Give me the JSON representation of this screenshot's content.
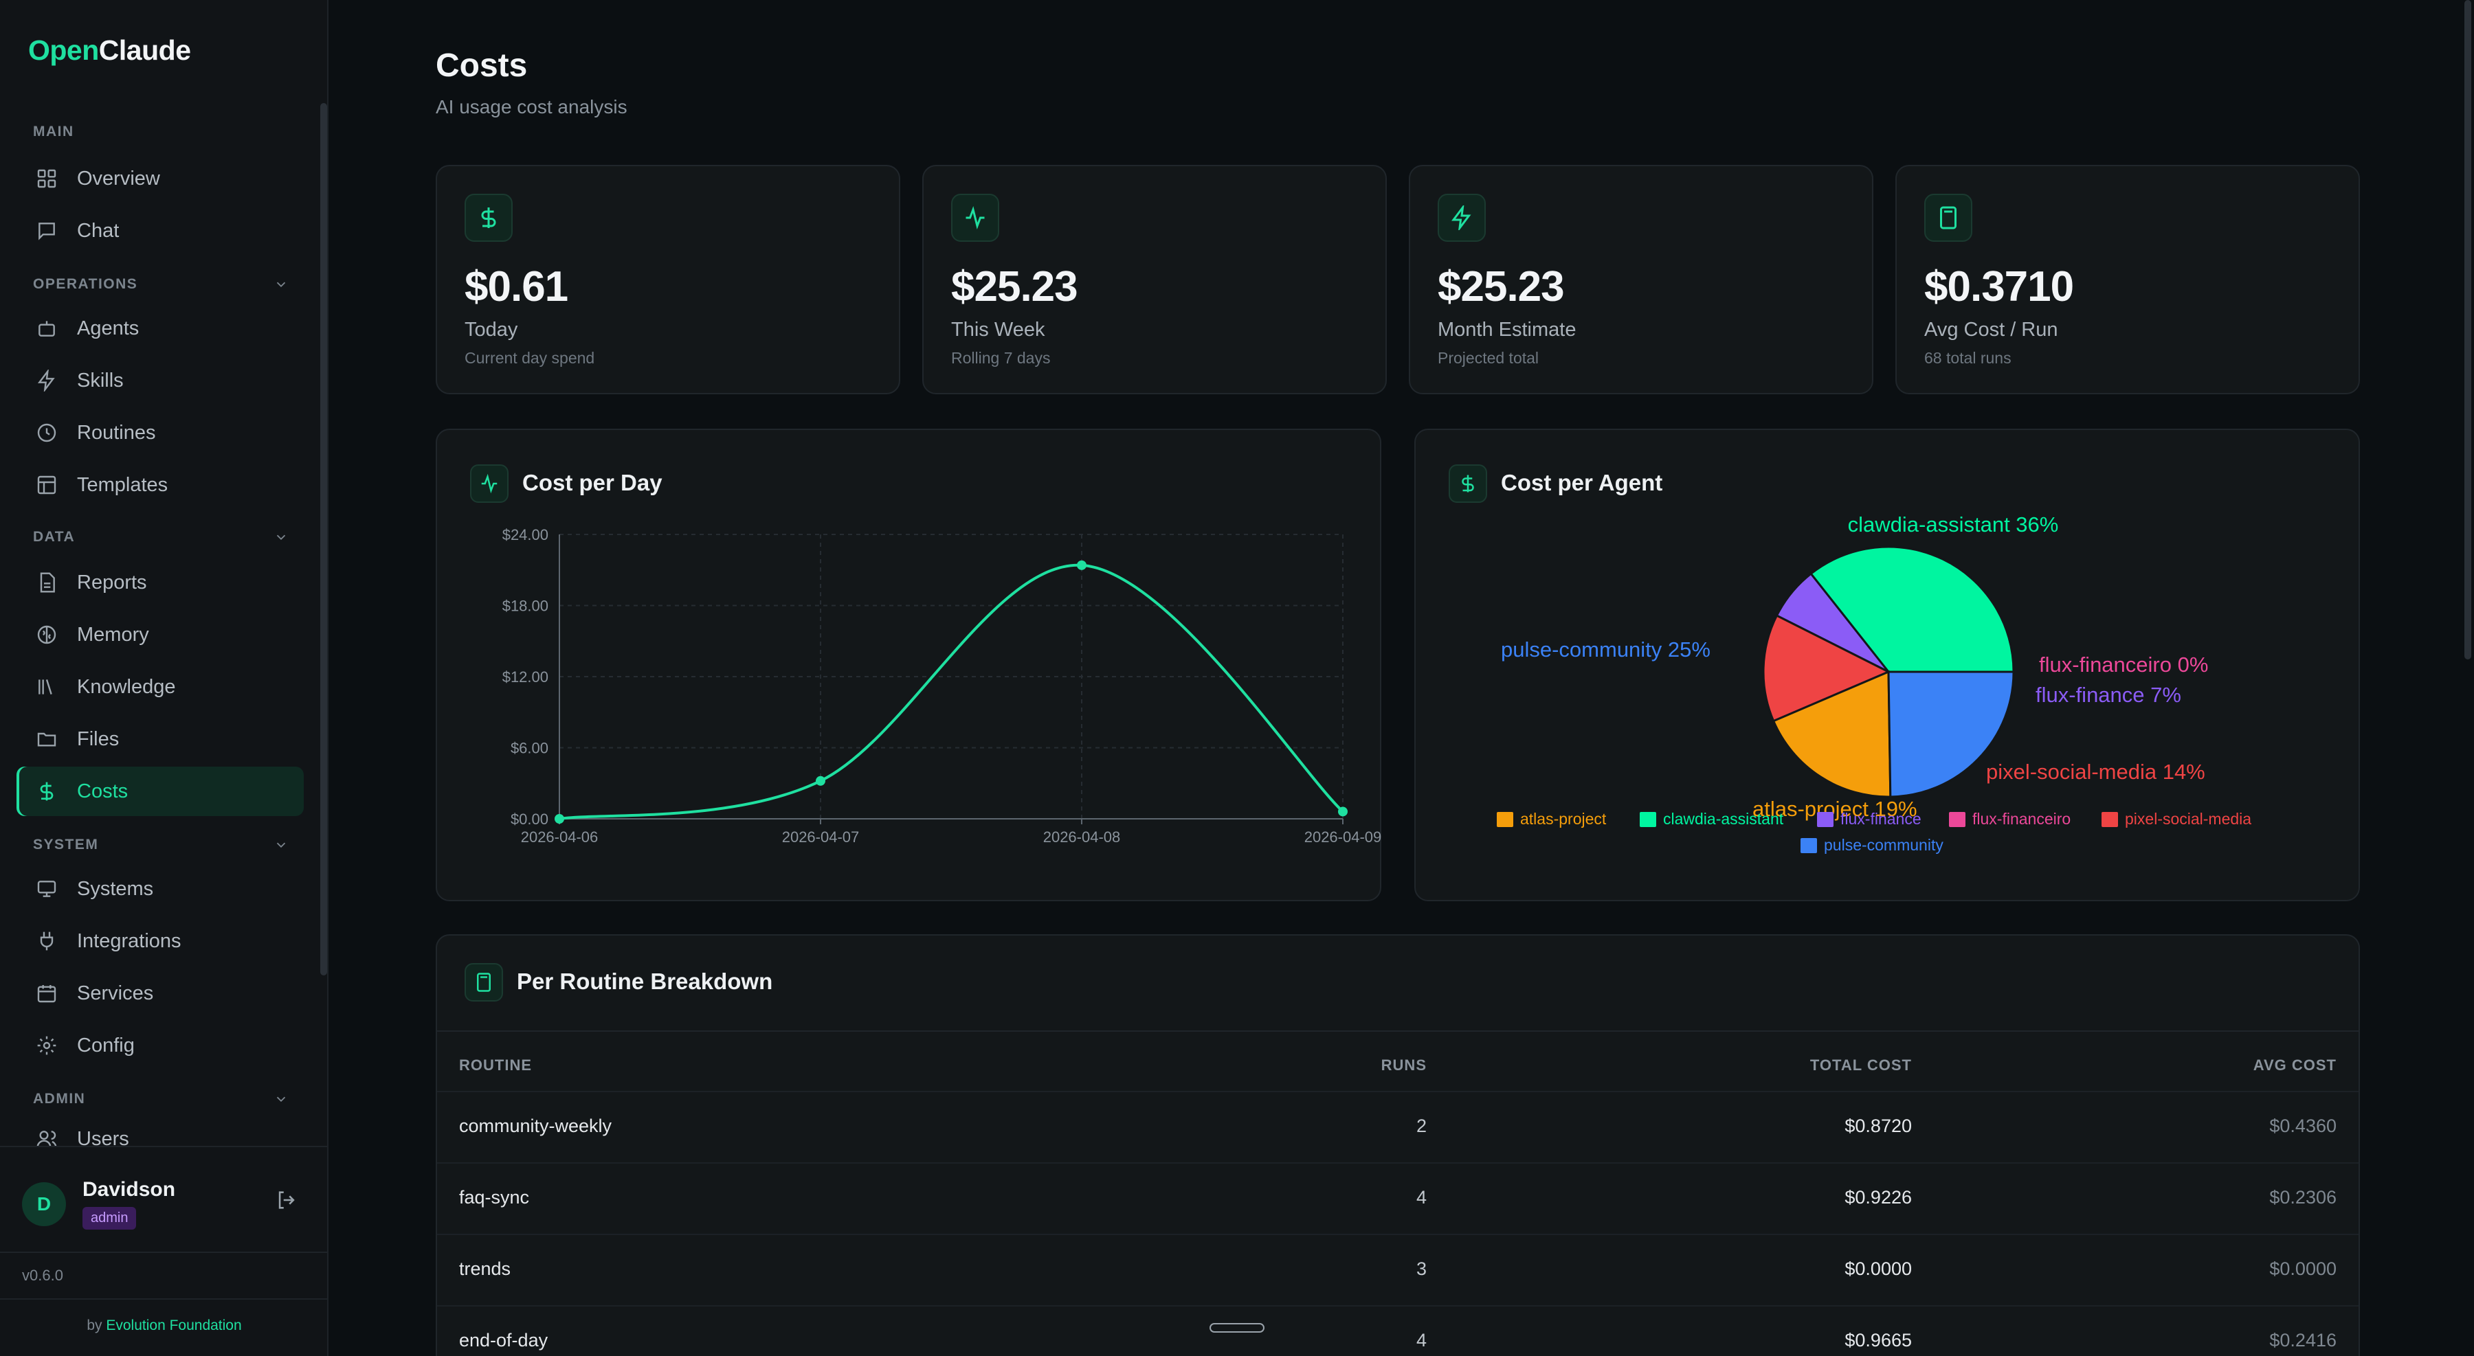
{
  "app": {
    "logo_open": "Open",
    "logo_claude": "Claude",
    "version": "v0.6.0",
    "byline_prefix": "by",
    "byline_link": "Evolution Foundation"
  },
  "sidebar": {
    "sections": {
      "main": "MAIN",
      "operations": "OPERATIONS",
      "data": "DATA",
      "system": "SYSTEM",
      "admin": "ADMIN"
    },
    "items": {
      "overview": "Overview",
      "chat": "Chat",
      "agents": "Agents",
      "skills": "Skills",
      "routines": "Routines",
      "templates": "Templates",
      "reports": "Reports",
      "memory": "Memory",
      "knowledge": "Knowledge",
      "files": "Files",
      "costs": "Costs",
      "systems": "Systems",
      "integrations": "Integrations",
      "services": "Services",
      "config": "Config",
      "users": "Users"
    },
    "active": "costs"
  },
  "user": {
    "initial": "D",
    "name": "Davidson",
    "role": "admin"
  },
  "page": {
    "title": "Costs",
    "subtitle": "AI usage cost analysis"
  },
  "stats": [
    {
      "value": "$0.61",
      "label": "Today",
      "sub": "Current day spend",
      "icon": "dollar-icon"
    },
    {
      "value": "$25.23",
      "label": "This Week",
      "sub": "Rolling 7 days",
      "icon": "activity-icon"
    },
    {
      "value": "$25.23",
      "label": "Month Estimate",
      "sub": "Projected total",
      "icon": "zap-icon"
    },
    {
      "value": "$0.3710",
      "label": "Avg Cost / Run",
      "sub": "68 total runs",
      "icon": "calculator-icon"
    }
  ],
  "cost_per_day": {
    "title": "Cost per Day",
    "chart_data": {
      "type": "line",
      "x": [
        "2026-04-06",
        "2026-04-07",
        "2026-04-08",
        "2026-04-09"
      ],
      "values": [
        0.0,
        3.2,
        21.4,
        0.61
      ],
      "yticks": [
        "$0.00",
        "$6.00",
        "$12.00",
        "$18.00",
        "$24.00"
      ],
      "ylim": [
        0,
        24
      ],
      "grid": true,
      "color": "#1fe0a0"
    }
  },
  "cost_per_agent": {
    "title": "Cost per Agent",
    "chart_data": {
      "type": "pie",
      "slices": [
        {
          "name": "clawdia-assistant",
          "percent": 36,
          "label": "clawdia-assistant 36%",
          "color": "#00f5a0"
        },
        {
          "name": "flux-financeiro",
          "percent": 0,
          "label": "flux-financeiro 0%",
          "color": "#ec4899"
        },
        {
          "name": "flux-finance",
          "percent": 7,
          "label": "flux-finance 7%",
          "color": "#8b5cf6"
        },
        {
          "name": "pixel-social-media",
          "percent": 14,
          "label": "pixel-social-media 14%",
          "color": "#ef4444"
        },
        {
          "name": "atlas-project",
          "percent": 19,
          "label": "atlas-project 19%",
          "color": "#f59e0b"
        },
        {
          "name": "pulse-community",
          "percent": 25,
          "label": "pulse-community 25%",
          "color": "#3b82f6"
        }
      ],
      "legend": [
        {
          "name": "atlas-project",
          "color": "#f59e0b"
        },
        {
          "name": "clawdia-assistant",
          "color": "#00f5a0"
        },
        {
          "name": "flux-finance",
          "color": "#8b5cf6"
        },
        {
          "name": "flux-financeiro",
          "color": "#ec4899"
        },
        {
          "name": "pixel-social-media",
          "color": "#ef4444"
        },
        {
          "name": "pulse-community",
          "color": "#3b82f6"
        }
      ],
      "legend_position": "bottom"
    }
  },
  "breakdown": {
    "title": "Per Routine Breakdown",
    "columns": {
      "routine": "ROUTINE",
      "runs": "RUNS",
      "total": "TOTAL COST",
      "avg": "AVG COST"
    },
    "rows": [
      {
        "routine": "community-weekly",
        "runs": "2",
        "total": "$0.8720",
        "avg": "$0.4360"
      },
      {
        "routine": "faq-sync",
        "runs": "4",
        "total": "$0.9226",
        "avg": "$0.2306"
      },
      {
        "routine": "trends",
        "runs": "3",
        "total": "$0.0000",
        "avg": "$0.0000"
      },
      {
        "routine": "end-of-day",
        "runs": "4",
        "total": "$0.9665",
        "avg": "$0.2416"
      }
    ]
  },
  "colors": {
    "accent": "#1fe0a0",
    "background": "#0b0f12",
    "card": "#131719"
  }
}
